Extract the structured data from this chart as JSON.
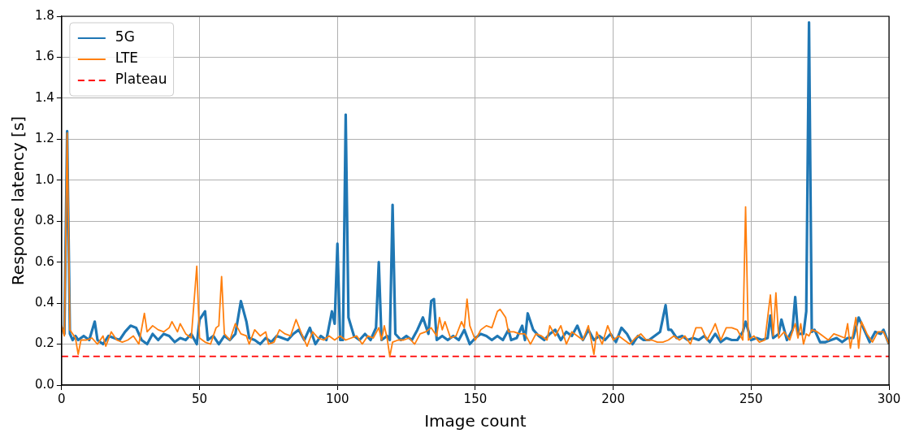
{
  "chart_data": {
    "type": "line",
    "xlabel": "Image count",
    "ylabel": "Response latency [s]",
    "xlim": [
      0,
      300
    ],
    "ylim": [
      0,
      1.8
    ],
    "xticks": [
      0,
      50,
      100,
      150,
      200,
      250,
      300
    ],
    "yticks": [
      {
        "value": 0,
        "label": "0.0"
      },
      0.2,
      0.4,
      0.6,
      0.8,
      {
        "value": 1,
        "label": "1.0"
      },
      1.2,
      1.4,
      1.6,
      1.8
    ],
    "grid": true,
    "legend": "top left",
    "line_style": "solid",
    "marker": "none",
    "series": [
      {
        "name": "5G",
        "color": "#1f77b4",
        "x": [
          0,
          1,
          2,
          3,
          4,
          5,
          6,
          8,
          10,
          12,
          13,
          15,
          17,
          19,
          21,
          23,
          25,
          27,
          29,
          31,
          33,
          35,
          37,
          39,
          41,
          43,
          45,
          47,
          49,
          50,
          52,
          53,
          55,
          57,
          59,
          61,
          63,
          65,
          67,
          68,
          70,
          72,
          74,
          76,
          78,
          80,
          82,
          84,
          86,
          88,
          90,
          92,
          94,
          96,
          98,
          99,
          100,
          101,
          102,
          103,
          104,
          106,
          108,
          110,
          112,
          114,
          115,
          116,
          118,
          119,
          120,
          121,
          123,
          125,
          127,
          129,
          131,
          133,
          134,
          135,
          136,
          138,
          140,
          142,
          144,
          146,
          148,
          150,
          152,
          154,
          156,
          158,
          160,
          162,
          163,
          165,
          167,
          168,
          169,
          171,
          173,
          175,
          177,
          179,
          181,
          183,
          185,
          187,
          189,
          191,
          193,
          195,
          197,
          199,
          201,
          203,
          205,
          207,
          209,
          211,
          213,
          215,
          217,
          219,
          220,
          221,
          223,
          225,
          227,
          229,
          231,
          233,
          235,
          237,
          239,
          241,
          243,
          245,
          247,
          248,
          250,
          252,
          254,
          256,
          257,
          258,
          260,
          261,
          263,
          265,
          266,
          267,
          269,
          270,
          271,
          272,
          273,
          275,
          277,
          279,
          281,
          283,
          285,
          287,
          289,
          291,
          293,
          295,
          297,
          298,
          300
        ],
        "values": [
          0.28,
          0.25,
          1.24,
          0.25,
          0.22,
          0.24,
          0.22,
          0.24,
          0.22,
          0.31,
          0.22,
          0.2,
          0.24,
          0.23,
          0.22,
          0.26,
          0.29,
          0.28,
          0.22,
          0.2,
          0.25,
          0.22,
          0.25,
          0.24,
          0.21,
          0.23,
          0.22,
          0.25,
          0.2,
          0.32,
          0.36,
          0.22,
          0.24,
          0.2,
          0.24,
          0.22,
          0.25,
          0.41,
          0.31,
          0.23,
          0.22,
          0.2,
          0.23,
          0.21,
          0.24,
          0.23,
          0.22,
          0.25,
          0.27,
          0.22,
          0.28,
          0.2,
          0.24,
          0.22,
          0.36,
          0.3,
          0.69,
          0.22,
          0.22,
          1.32,
          0.33,
          0.24,
          0.22,
          0.25,
          0.22,
          0.28,
          0.6,
          0.22,
          0.24,
          0.22,
          0.88,
          0.25,
          0.22,
          0.24,
          0.22,
          0.27,
          0.33,
          0.25,
          0.41,
          0.42,
          0.22,
          0.24,
          0.22,
          0.24,
          0.22,
          0.27,
          0.2,
          0.23,
          0.25,
          0.24,
          0.22,
          0.24,
          0.22,
          0.27,
          0.22,
          0.23,
          0.29,
          0.22,
          0.35,
          0.27,
          0.24,
          0.22,
          0.25,
          0.27,
          0.22,
          0.26,
          0.24,
          0.29,
          0.22,
          0.27,
          0.22,
          0.24,
          0.22,
          0.25,
          0.21,
          0.28,
          0.25,
          0.2,
          0.24,
          0.22,
          0.22,
          0.24,
          0.26,
          0.39,
          0.27,
          0.27,
          0.23,
          0.24,
          0.22,
          0.23,
          0.22,
          0.24,
          0.21,
          0.25,
          0.21,
          0.23,
          0.22,
          0.22,
          0.26,
          0.31,
          0.22,
          0.23,
          0.22,
          0.23,
          0.34,
          0.23,
          0.25,
          0.32,
          0.22,
          0.27,
          0.43,
          0.25,
          0.25,
          0.36,
          1.77,
          0.26,
          0.27,
          0.21,
          0.21,
          0.22,
          0.23,
          0.21,
          0.23,
          0.23,
          0.33,
          0.27,
          0.21,
          0.26,
          0.25,
          0.27,
          0.2
        ]
      },
      {
        "name": "LTE",
        "color": "#ff7f0e",
        "x": [
          0,
          1,
          2,
          3,
          5,
          6,
          7,
          9,
          11,
          13,
          15,
          16,
          18,
          20,
          22,
          24,
          26,
          28,
          30,
          31,
          33,
          35,
          37,
          39,
          40,
          42,
          43,
          45,
          47,
          49,
          50,
          52,
          54,
          56,
          57,
          58,
          59,
          61,
          63,
          65,
          67,
          68,
          70,
          72,
          74,
          75,
          77,
          79,
          81,
          83,
          85,
          87,
          89,
          91,
          93,
          95,
          97,
          99,
          101,
          103,
          105,
          107,
          109,
          111,
          113,
          115,
          116,
          117,
          118,
          119,
          120,
          122,
          124,
          126,
          128,
          130,
          132,
          134,
          136,
          137,
          138,
          139,
          141,
          143,
          145,
          146,
          147,
          148,
          150,
          152,
          154,
          156,
          158,
          159,
          161,
          162,
          164,
          166,
          168,
          170,
          172,
          174,
          176,
          177,
          179,
          181,
          183,
          185,
          187,
          189,
          191,
          193,
          194,
          196,
          198,
          200,
          202,
          204,
          206,
          208,
          210,
          212,
          214,
          216,
          218,
          220,
          222,
          224,
          226,
          228,
          230,
          232,
          234,
          236,
          237,
          239,
          241,
          243,
          245,
          247,
          248,
          249,
          251,
          253,
          255,
          257,
          258,
          259,
          260,
          262,
          264,
          266,
          267,
          268,
          269,
          270,
          271,
          272,
          274,
          276,
          278,
          280,
          282,
          284,
          285,
          286,
          288,
          289,
          290,
          292,
          294,
          296,
          298,
          300
        ],
        "values": [
          0.29,
          0.24,
          1.23,
          0.27,
          0.23,
          0.15,
          0.22,
          0.22,
          0.23,
          0.2,
          0.24,
          0.19,
          0.26,
          0.22,
          0.21,
          0.22,
          0.24,
          0.2,
          0.35,
          0.26,
          0.29,
          0.27,
          0.26,
          0.28,
          0.31,
          0.26,
          0.3,
          0.25,
          0.23,
          0.58,
          0.23,
          0.21,
          0.2,
          0.28,
          0.29,
          0.53,
          0.25,
          0.22,
          0.3,
          0.25,
          0.24,
          0.2,
          0.27,
          0.24,
          0.26,
          0.2,
          0.21,
          0.27,
          0.25,
          0.24,
          0.32,
          0.25,
          0.19,
          0.26,
          0.23,
          0.22,
          0.24,
          0.22,
          0.24,
          0.22,
          0.23,
          0.24,
          0.2,
          0.24,
          0.23,
          0.28,
          0.22,
          0.29,
          0.23,
          0.14,
          0.21,
          0.22,
          0.22,
          0.23,
          0.2,
          0.25,
          0.26,
          0.28,
          0.24,
          0.33,
          0.27,
          0.31,
          0.23,
          0.24,
          0.31,
          0.28,
          0.42,
          0.29,
          0.22,
          0.27,
          0.29,
          0.28,
          0.36,
          0.37,
          0.33,
          0.26,
          0.26,
          0.25,
          0.25,
          0.2,
          0.25,
          0.24,
          0.22,
          0.29,
          0.24,
          0.29,
          0.2,
          0.26,
          0.24,
          0.22,
          0.29,
          0.15,
          0.26,
          0.2,
          0.29,
          0.22,
          0.24,
          0.22,
          0.2,
          0.23,
          0.25,
          0.22,
          0.22,
          0.21,
          0.21,
          0.22,
          0.24,
          0.22,
          0.24,
          0.2,
          0.28,
          0.28,
          0.22,
          0.27,
          0.3,
          0.22,
          0.28,
          0.28,
          0.27,
          0.22,
          0.87,
          0.22,
          0.24,
          0.21,
          0.22,
          0.44,
          0.24,
          0.45,
          0.23,
          0.26,
          0.22,
          0.3,
          0.23,
          0.3,
          0.2,
          0.25,
          0.24,
          0.27,
          0.26,
          0.24,
          0.22,
          0.25,
          0.24,
          0.23,
          0.3,
          0.18,
          0.33,
          0.18,
          0.31,
          0.25,
          0.21,
          0.26,
          0.26,
          0.2
        ]
      }
    ],
    "ref_lines": [
      {
        "axis": "y",
        "value": 0.14,
        "label": "Plateau",
        "color": "#ff0000",
        "line_style": "dashed"
      }
    ]
  }
}
